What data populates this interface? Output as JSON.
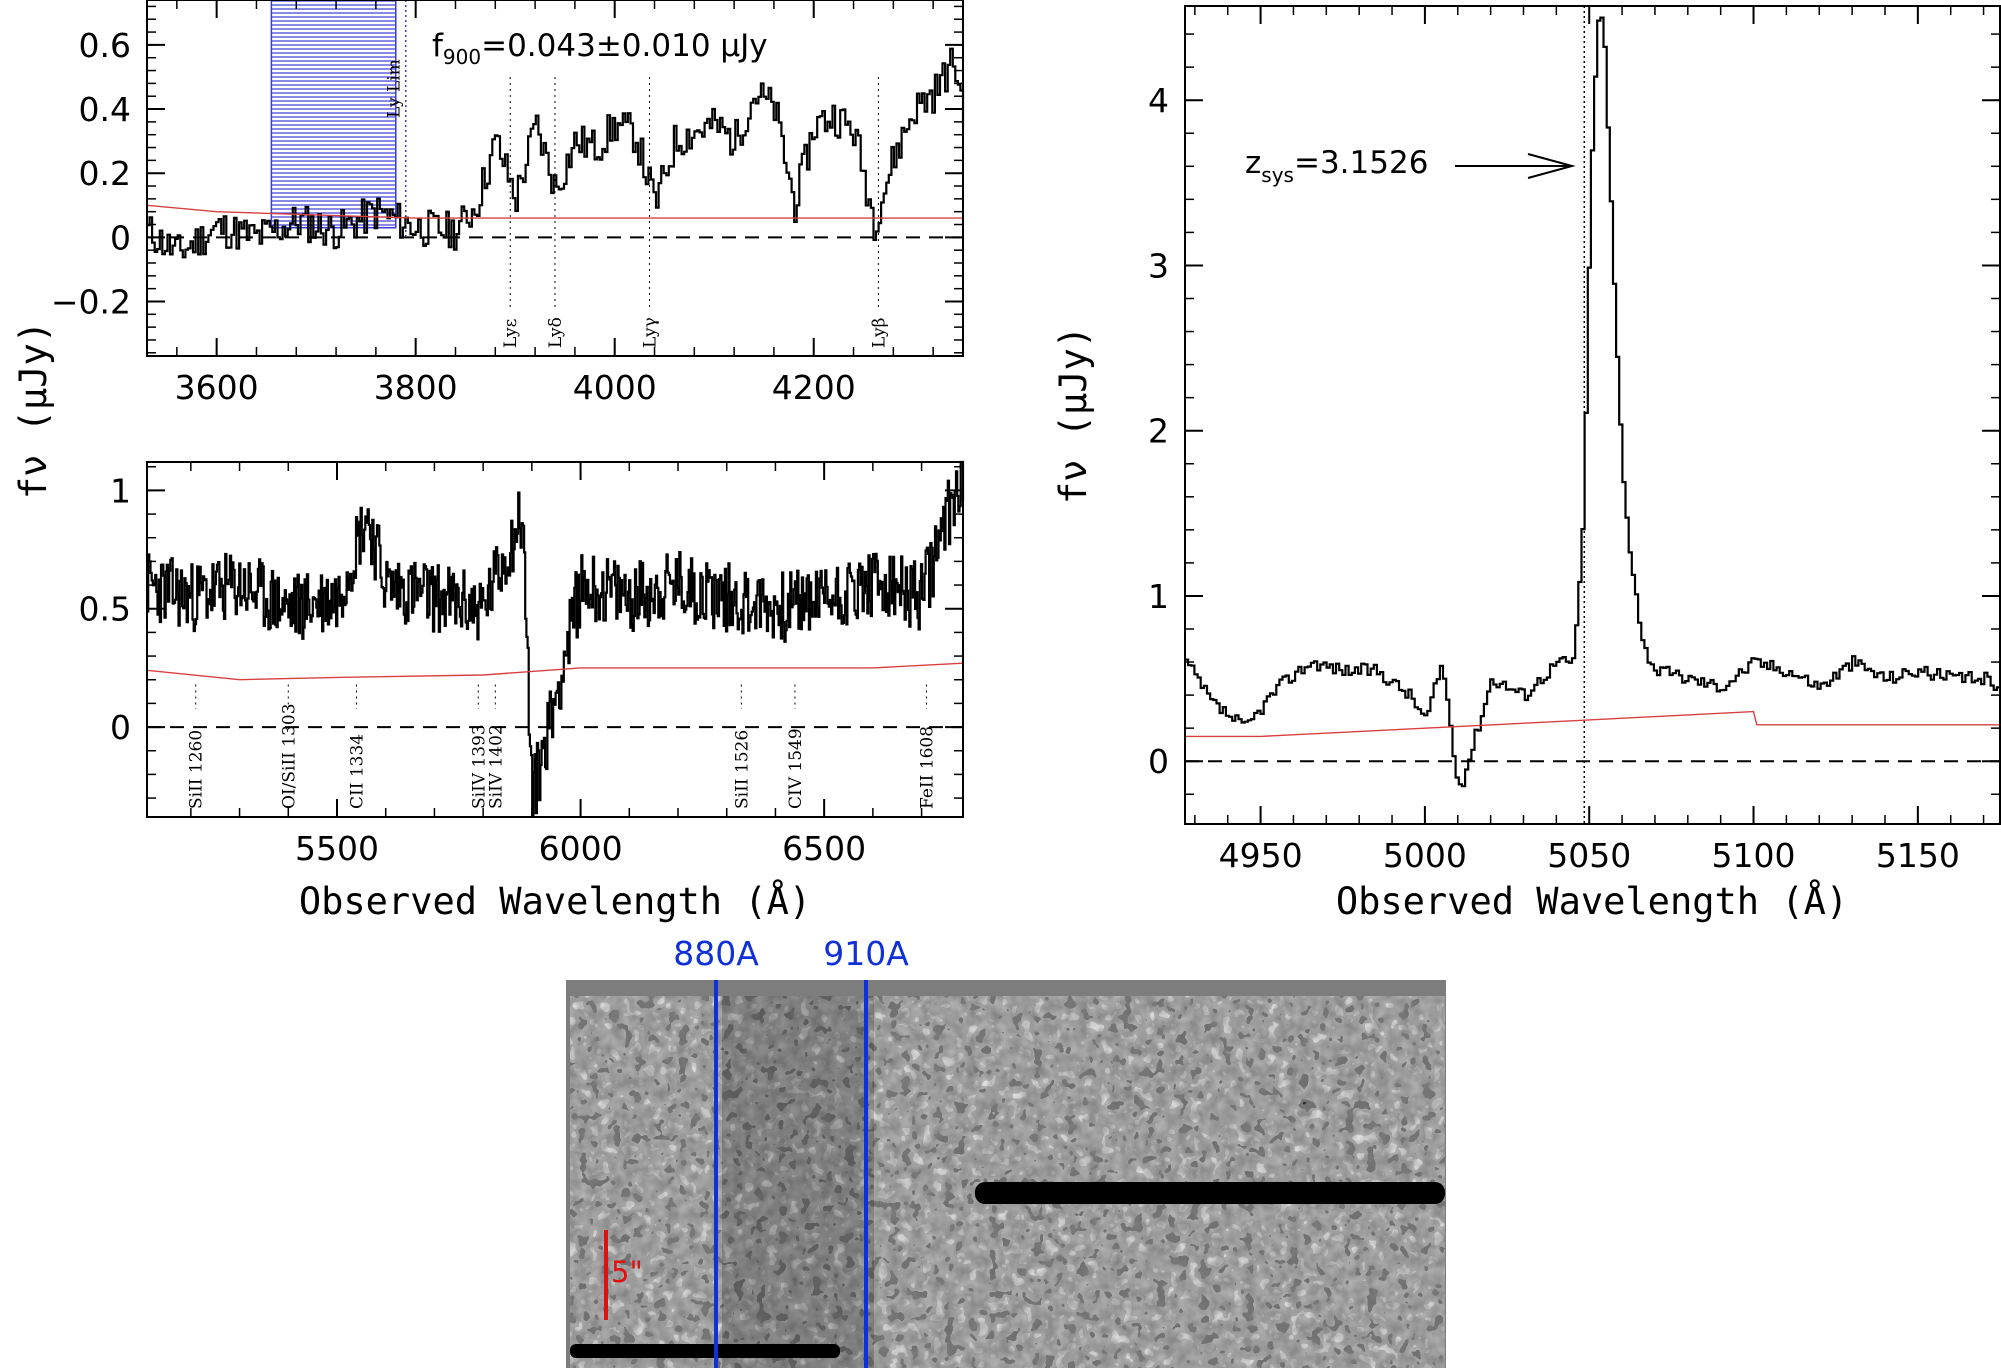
{
  "chart_data": [
    {
      "panel": "top-left",
      "type": "line",
      "xlabel": "",
      "ylabel": "fν (μJy)",
      "xlim": [
        3530,
        4350
      ],
      "ylim": [
        -0.37,
        0.74
      ],
      "x_ticks": [
        3600,
        3800,
        4000,
        4200
      ],
      "x_tick_labels": [
        "3600",
        "3800",
        "4000",
        "4200"
      ],
      "y_ticks": [
        -0.2,
        0,
        0.2,
        0.4,
        0.6
      ],
      "y_tick_labels": [
        "−0.2",
        "0",
        "0.2",
        "0.4",
        "0.6"
      ],
      "annotation": {
        "main": "f",
        "sub": "900",
        "rest": "=0.043±0.010  μJy"
      },
      "shaded_region": {
        "x": [
          3655,
          3780
        ],
        "color": "#3a3ad8"
      },
      "lyman_limit": {
        "x": 3790,
        "label": "Ly Lim"
      },
      "lines": [
        {
          "x": 3895,
          "label": "Lyε"
        },
        {
          "x": 3940,
          "label": "Lyδ"
        },
        {
          "x": 4035,
          "label": "Lyγ"
        },
        {
          "x": 4265,
          "label": "Lyβ"
        }
      ],
      "zero_line": 0,
      "series": [
        {
          "role": "flux",
          "color": "#000000",
          "x": [
            3530,
            3560,
            3600,
            3640,
            3680,
            3720,
            3760,
            3800,
            3840,
            3860,
            3880,
            3900,
            3920,
            3940,
            3960,
            3980,
            4000,
            4020,
            4040,
            4060,
            4080,
            4100,
            4120,
            4140,
            4160,
            4180,
            4200,
            4220,
            4240,
            4260,
            4280,
            4300,
            4320,
            4340,
            4350
          ],
          "values": [
            0.02,
            -0.05,
            0.03,
            0.0,
            0.05,
            0.02,
            0.08,
            0.03,
            0.02,
            0.1,
            0.3,
            0.12,
            0.35,
            0.15,
            0.3,
            0.28,
            0.35,
            0.32,
            0.1,
            0.3,
            0.33,
            0.35,
            0.3,
            0.45,
            0.4,
            0.1,
            0.35,
            0.38,
            0.33,
            0.05,
            0.25,
            0.4,
            0.45,
            0.55,
            0.4
          ]
        },
        {
          "role": "error",
          "color": "#d84040",
          "x": [
            3530,
            3600,
            3700,
            3800,
            3900,
            4000,
            4100,
            4200,
            4300,
            4350
          ],
          "values": [
            0.1,
            0.08,
            0.07,
            0.06,
            0.06,
            0.06,
            0.06,
            0.06,
            0.06,
            0.06
          ]
        }
      ]
    },
    {
      "panel": "bottom-left",
      "type": "line",
      "xlabel": "Observed Wavelength (Å)",
      "ylabel": "",
      "xlim": [
        5110,
        6785
      ],
      "ylim": [
        -0.38,
        1.12
      ],
      "x_ticks": [
        5500,
        6000,
        6500
      ],
      "x_tick_labels": [
        "5500",
        "6000",
        "6500"
      ],
      "y_ticks": [
        0,
        0.5,
        1
      ],
      "y_tick_labels": [
        "0",
        "0.5",
        "1"
      ],
      "lines": [
        {
          "x": 5210,
          "label": "SiII 1260"
        },
        {
          "x": 5400,
          "label": "OI/SiII 1303"
        },
        {
          "x": 5540,
          "label": "CII 1334"
        },
        {
          "x": 5790,
          "label": "SiIV 1393"
        },
        {
          "x": 5825,
          "label": "SiIV 1402"
        },
        {
          "x": 6330,
          "label": "SiII 1526"
        },
        {
          "x": 6440,
          "label": "CIV 1549"
        },
        {
          "x": 6710,
          "label": "FeII 1608"
        }
      ],
      "zero_line": 0,
      "series": [
        {
          "role": "flux",
          "color": "#000000",
          "x": [
            5110,
            5200,
            5300,
            5400,
            5500,
            5560,
            5600,
            5700,
            5800,
            5880,
            5900,
            6000,
            6100,
            6200,
            6300,
            6400,
            6500,
            6600,
            6700,
            6785
          ],
          "values": [
            0.6,
            0.55,
            0.6,
            0.5,
            0.55,
            0.9,
            0.6,
            0.55,
            0.5,
            0.9,
            -0.3,
            0.6,
            0.55,
            0.6,
            0.55,
            0.5,
            0.55,
            0.6,
            0.55,
            1.1
          ]
        },
        {
          "role": "error",
          "color": "#d84040",
          "x": [
            5110,
            5300,
            5500,
            5800,
            6000,
            6300,
            6600,
            6785
          ],
          "values": [
            0.24,
            0.2,
            0.21,
            0.22,
            0.25,
            0.25,
            0.25,
            0.27
          ]
        }
      ]
    },
    {
      "panel": "right",
      "type": "line",
      "xlabel": "Observed Wavelength (Å)",
      "ylabel": "fν (μJy)",
      "xlim": [
        4927,
        5175
      ],
      "ylim": [
        -0.38,
        4.57
      ],
      "x_ticks": [
        4950,
        5000,
        5050,
        5100,
        5150
      ],
      "x_tick_labels": [
        "4950",
        "5000",
        "5050",
        "5100",
        "5150"
      ],
      "y_ticks": [
        0,
        1,
        2,
        3,
        4
      ],
      "y_tick_labels": [
        "0",
        "1",
        "2",
        "3",
        "4"
      ],
      "annotation": {
        "main": "z",
        "sub": "sys",
        "rest": "=3.1526"
      },
      "systemic_x": 5048.5,
      "zero_line": 0,
      "series": [
        {
          "role": "flux",
          "color": "#000000",
          "x": [
            4927,
            4935,
            4945,
            4955,
            4965,
            4975,
            4985,
            4995,
            5000,
            5005,
            5010,
            5020,
            5030,
            5040,
            5045,
            5048,
            5050,
            5052,
            5054,
            5056,
            5058,
            5060,
            5062,
            5064,
            5066,
            5070,
            5080,
            5090,
            5100,
            5110,
            5120,
            5130,
            5140,
            5150,
            5160,
            5170,
            5175
          ],
          "values": [
            0.6,
            0.35,
            0.2,
            0.45,
            0.6,
            0.55,
            0.55,
            0.4,
            0.25,
            0.6,
            -0.2,
            0.5,
            0.4,
            0.6,
            0.6,
            1.5,
            3.4,
            4.45,
            4.5,
            3.5,
            2.5,
            1.7,
            1.3,
            1.0,
            0.7,
            0.55,
            0.5,
            0.45,
            0.6,
            0.55,
            0.45,
            0.6,
            0.5,
            0.55,
            0.5,
            0.5,
            0.45
          ]
        },
        {
          "role": "error",
          "color": "#d84040",
          "x": [
            4927,
            4950,
            5000,
            5050,
            5080,
            5100,
            5101,
            5130,
            5175
          ],
          "values": [
            0.15,
            0.15,
            0.2,
            0.25,
            0.28,
            0.3,
            0.22,
            0.22,
            0.22
          ]
        }
      ]
    }
  ],
  "image_panel": {
    "labels": {
      "left": "880A",
      "right": "910A"
    },
    "scale_bar_label": "5\""
  }
}
